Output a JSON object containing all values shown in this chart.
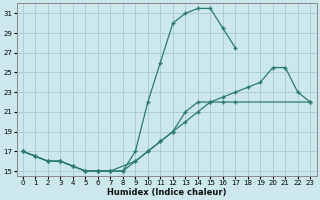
{
  "xlabel": "Humidex (Indice chaleur)",
  "background_color": "#cce8ec",
  "grid_color": "#aacdd4",
  "line_color": "#2a7a72",
  "xlim": [
    -0.5,
    23.5
  ],
  "ylim": [
    14.5,
    32
  ],
  "yticks": [
    15,
    17,
    19,
    21,
    23,
    25,
    27,
    29,
    31
  ],
  "xticks": [
    0,
    1,
    2,
    3,
    4,
    5,
    6,
    7,
    8,
    9,
    10,
    11,
    12,
    13,
    14,
    15,
    16,
    17,
    18,
    19,
    20,
    21,
    22,
    23
  ],
  "line1_x": [
    0,
    1,
    2,
    3,
    4,
    5,
    6,
    7,
    9,
    10,
    11,
    12,
    13,
    14,
    15,
    16,
    17,
    23
  ],
  "line1_y": [
    17,
    16.5,
    16,
    16,
    15.5,
    15,
    15,
    15,
    16,
    17,
    18,
    19,
    21,
    22,
    22,
    22,
    22,
    22
  ],
  "line2_x": [
    0,
    1,
    2,
    3,
    4,
    5,
    6,
    7,
    8,
    9,
    10,
    11,
    12,
    13,
    14,
    15,
    16,
    17
  ],
  "line2_y": [
    17,
    16.5,
    16,
    16,
    15.5,
    15,
    15,
    15,
    15,
    17,
    22,
    26,
    30,
    31,
    31.5,
    31.5,
    29.5,
    27.5
  ],
  "line3_x": [
    0,
    1,
    2,
    3,
    4,
    5,
    6,
    7,
    8,
    9,
    10,
    11,
    12,
    13,
    14,
    15,
    16,
    17,
    18,
    19,
    20,
    21,
    22,
    23
  ],
  "line3_y": [
    17,
    16.5,
    16,
    16,
    15.5,
    15,
    15,
    15,
    15,
    16,
    17,
    18,
    19,
    20,
    21,
    22,
    22.5,
    23,
    23.5,
    24,
    25.5,
    25.5,
    23,
    22
  ]
}
